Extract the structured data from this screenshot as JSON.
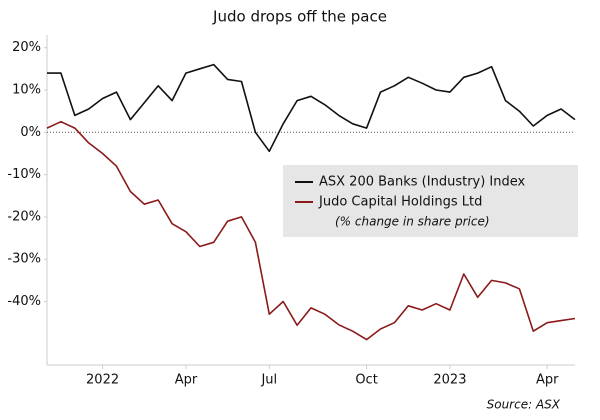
{
  "chart_data": {
    "type": "line",
    "title": "Judo drops off the pace",
    "note": "(% change in share price)",
    "source": "Source: ASX",
    "categories": [
      null,
      null,
      null,
      null,
      "2022",
      null,
      null,
      null,
      null,
      null,
      "Apr",
      null,
      null,
      null,
      null,
      null,
      "Jul",
      null,
      null,
      null,
      null,
      null,
      null,
      "Oct",
      null,
      null,
      null,
      null,
      null,
      "2023",
      null,
      null,
      null,
      null,
      null,
      null,
      "Apr",
      null,
      null
    ],
    "series": [
      {
        "name": "ASX 200 Banks (Industry) Index",
        "color": "#111111",
        "values": [
          14,
          14,
          4,
          5.5,
          8,
          9.5,
          3,
          7,
          11,
          7.5,
          14,
          15,
          16,
          12.5,
          12,
          0,
          -4.5,
          2,
          7.5,
          8.5,
          6.5,
          4,
          2,
          1,
          9.5,
          11,
          13,
          11.6,
          10,
          9.5,
          13,
          14,
          15.5,
          7.5,
          5,
          1.5,
          4,
          5.5,
          3
        ]
      },
      {
        "name": "Judo Capital Holdings Ltd",
        "color": "#8b1a1a",
        "values": [
          1,
          2.5,
          1,
          -2.5,
          -5,
          -8,
          -14,
          -17,
          -16,
          -21.6,
          -23.5,
          -27,
          -26,
          -21,
          -20,
          -26,
          -43,
          -40,
          -45.6,
          -41.5,
          -43,
          -45.5,
          -47,
          -49,
          -46.5,
          -45,
          -41,
          -42,
          -40.5,
          -42,
          -33.5,
          -39,
          -35,
          -35.6,
          -37,
          -47,
          -45,
          -44.5,
          -44
        ]
      }
    ],
    "ylim": [
      -55,
      23
    ],
    "yticks": [
      {
        "value": 20,
        "label": "20%"
      },
      {
        "value": 10,
        "label": "10%"
      },
      {
        "value": 0,
        "label": "0%"
      },
      {
        "value": -10,
        "label": "-10%"
      },
      {
        "value": -20,
        "label": "-20%"
      },
      {
        "value": -30,
        "label": "-30%"
      },
      {
        "value": -40,
        "label": "-40%"
      }
    ],
    "grid": false,
    "legend": "right"
  }
}
